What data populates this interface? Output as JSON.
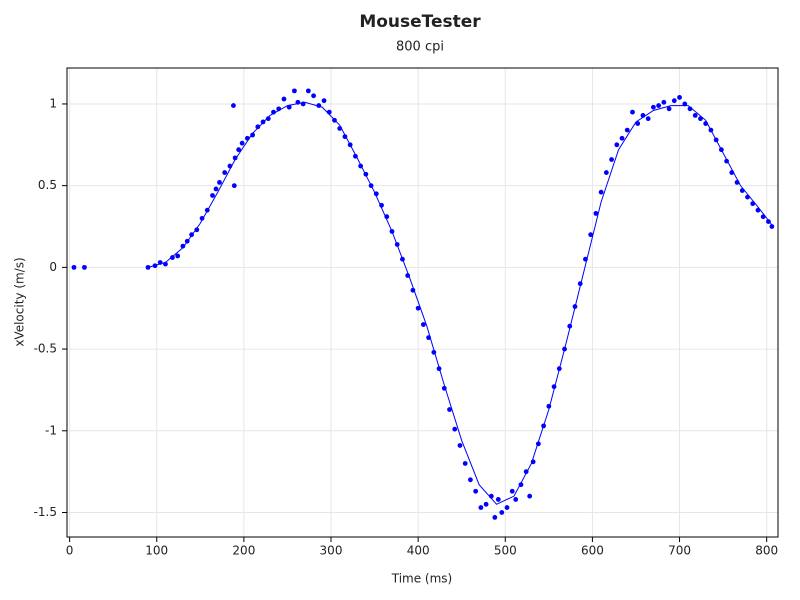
{
  "chart_data": {
    "type": "scatter",
    "title": "MouseTester",
    "subtitle": "800 cpi",
    "x_label": "Time (ms)",
    "y_label": "xVelocity (m/s)",
    "xlim": [
      -3,
      813
    ],
    "ylim": [
      -1.65,
      1.22
    ],
    "xticks": [
      0,
      100,
      200,
      300,
      400,
      500,
      600,
      700,
      800
    ],
    "yticks": [
      -1.5,
      -1,
      -0.5,
      0,
      0.5,
      1
    ],
    "grid": true,
    "series": [
      {
        "color": "#0000ff",
        "mode": "markers",
        "x": [
          5,
          17,
          90,
          98,
          104,
          110,
          118,
          124,
          130,
          135,
          140,
          146,
          152,
          158,
          164,
          168,
          172,
          178,
          184,
          188,
          189,
          190,
          194,
          198,
          204,
          210,
          216,
          222,
          228,
          234,
          240,
          246,
          252,
          258,
          262,
          268,
          274,
          280,
          286,
          292,
          298,
          304,
          310,
          316,
          322,
          328,
          334,
          340,
          346,
          352,
          358,
          364,
          370,
          376,
          382,
          388,
          394,
          400,
          406,
          412,
          418,
          424,
          430,
          436,
          442,
          448,
          454,
          460,
          466,
          472,
          478,
          484,
          488,
          492,
          496,
          502,
          508,
          512,
          518,
          524,
          528,
          532,
          538,
          544,
          550,
          556,
          562,
          568,
          574,
          580,
          586,
          592,
          598,
          604,
          610,
          616,
          622,
          628,
          634,
          640,
          646,
          652,
          658,
          664,
          670,
          676,
          682,
          688,
          694,
          700,
          706,
          712,
          718,
          724,
          730,
          736,
          742,
          748,
          754,
          760,
          766,
          772,
          778,
          784,
          790,
          796,
          802,
          806
        ],
        "values": [
          0,
          0,
          0,
          0.01,
          0.03,
          0.02,
          0.06,
          0.07,
          0.13,
          0.16,
          0.2,
          0.23,
          0.3,
          0.35,
          0.44,
          0.48,
          0.52,
          0.58,
          0.62,
          0.99,
          0.5,
          0.67,
          0.72,
          0.76,
          0.79,
          0.81,
          0.86,
          0.89,
          0.91,
          0.95,
          0.97,
          1.03,
          0.98,
          1.08,
          1.01,
          1.0,
          1.08,
          1.05,
          0.99,
          1.02,
          0.95,
          0.9,
          0.85,
          0.8,
          0.75,
          0.68,
          0.62,
          0.57,
          0.5,
          0.45,
          0.38,
          0.31,
          0.22,
          0.14,
          0.05,
          -0.05,
          -0.14,
          -0.25,
          -0.35,
          -0.43,
          -0.52,
          -0.62,
          -0.74,
          -0.87,
          -0.99,
          -1.09,
          -1.2,
          -1.3,
          -1.37,
          -1.47,
          -1.45,
          -1.4,
          -1.53,
          -1.42,
          -1.5,
          -1.47,
          -1.37,
          -1.42,
          -1.33,
          -1.25,
          -1.4,
          -1.19,
          -1.08,
          -0.97,
          -0.85,
          -0.73,
          -0.62,
          -0.5,
          -0.36,
          -0.24,
          -0.1,
          0.05,
          0.2,
          0.33,
          0.46,
          0.58,
          0.66,
          0.75,
          0.79,
          0.84,
          0.95,
          0.88,
          0.93,
          0.91,
          0.98,
          0.99,
          1.01,
          0.97,
          1.02,
          1.04,
          1.0,
          0.97,
          0.93,
          0.91,
          0.88,
          0.84,
          0.78,
          0.72,
          0.65,
          0.58,
          0.52,
          0.47,
          0.43,
          0.39,
          0.35,
          0.31,
          0.28,
          0.25
        ]
      },
      {
        "color": "#0000ff",
        "mode": "line",
        "x": [
          90,
          110,
          130,
          150,
          170,
          190,
          210,
          230,
          250,
          270,
          290,
          310,
          330,
          350,
          370,
          390,
          410,
          430,
          450,
          470,
          490,
          510,
          530,
          550,
          570,
          590,
          610,
          630,
          650,
          670,
          690,
          710,
          730,
          750,
          770,
          790,
          806
        ],
        "values": [
          0,
          0.03,
          0.12,
          0.27,
          0.46,
          0.66,
          0.82,
          0.93,
          0.99,
          1.01,
          0.98,
          0.87,
          0.67,
          0.46,
          0.22,
          -0.06,
          -0.36,
          -0.72,
          -1.06,
          -1.33,
          -1.45,
          -1.4,
          -1.2,
          -0.87,
          -0.46,
          -0.03,
          0.4,
          0.72,
          0.89,
          0.96,
          0.99,
          0.99,
          0.9,
          0.7,
          0.5,
          0.37,
          0.26
        ]
      }
    ]
  }
}
